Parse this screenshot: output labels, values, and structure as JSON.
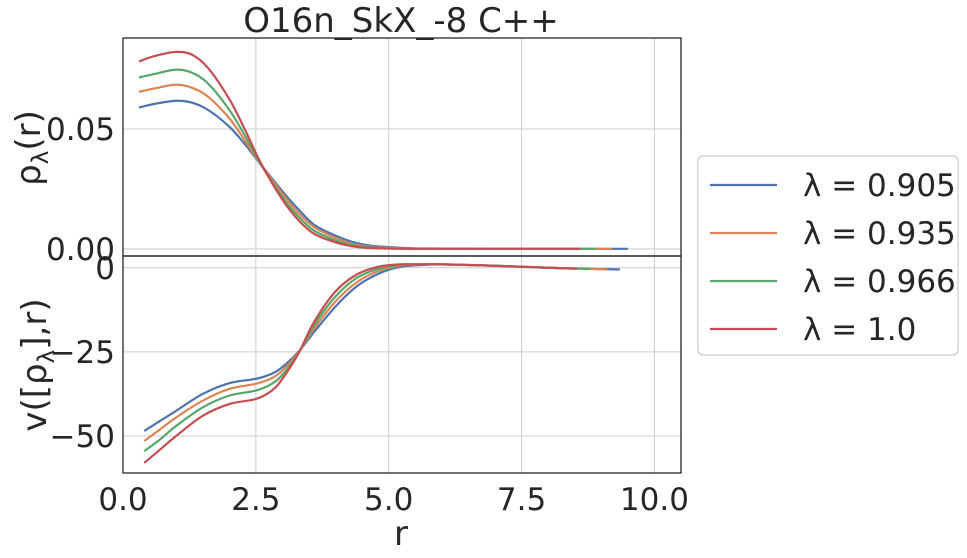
{
  "chart_data": [
    {
      "type": "line",
      "panel": "top",
      "title": "O16n_SkX_-8 C++",
      "xlabel": "",
      "ylabel": "ρλ(r)",
      "ylabel_base": "ρ",
      "ylabel_sub": "λ",
      "ylabel_tail": "(r)",
      "xlim": [
        0.0,
        10.5
      ],
      "ylim": [
        -0.003,
        0.088
      ],
      "yticks": [
        0.0,
        0.05
      ],
      "ytick_labels": [
        "0.00",
        "0.05"
      ],
      "grid": true,
      "series": [
        {
          "name": "λ = 0.905",
          "color": "#4c72b0",
          "x": [
            0.3,
            0.6,
            1.0,
            1.3,
            1.6,
            2.0,
            2.3,
            2.6,
            3.0,
            3.3,
            3.6,
            4.0,
            4.3,
            4.6,
            5.0,
            5.5,
            6.0,
            7.0,
            8.0,
            9.0,
            9.5
          ],
          "y": [
            0.059,
            0.0605,
            0.0618,
            0.061,
            0.058,
            0.051,
            0.0435,
            0.035,
            0.024,
            0.0165,
            0.01,
            0.0055,
            0.003,
            0.0015,
            0.0007,
            0.0002,
            0.0001,
            0.0,
            0.0,
            0.0,
            0.0
          ]
        },
        {
          "name": "λ = 0.935",
          "color": "#dd8452",
          "x": [
            0.3,
            0.6,
            1.0,
            1.3,
            1.6,
            2.0,
            2.3,
            2.6,
            3.0,
            3.3,
            3.6,
            4.0,
            4.3,
            4.6,
            5.0,
            5.5,
            6.0,
            7.0,
            8.0,
            9.0,
            9.2
          ],
          "y": [
            0.0655,
            0.067,
            0.0685,
            0.0672,
            0.0635,
            0.0545,
            0.045,
            0.035,
            0.023,
            0.015,
            0.009,
            0.0045,
            0.0022,
            0.001,
            0.0004,
            0.0001,
            0.0,
            0.0,
            0.0,
            0.0,
            0.0
          ]
        },
        {
          "name": "λ = 0.966",
          "color": "#55a868",
          "x": [
            0.3,
            0.6,
            1.0,
            1.3,
            1.6,
            2.0,
            2.3,
            2.6,
            3.0,
            3.3,
            3.6,
            4.0,
            4.3,
            4.6,
            5.0,
            5.5,
            6.0,
            7.0,
            8.0,
            8.9
          ],
          "y": [
            0.0715,
            0.073,
            0.0748,
            0.0735,
            0.069,
            0.058,
            0.047,
            0.035,
            0.0215,
            0.0135,
            0.0075,
            0.0035,
            0.0016,
            0.0007,
            0.0002,
            0.0,
            0.0,
            0.0,
            0.0,
            0.0
          ]
        },
        {
          "name": "λ = 1.0",
          "color": "#c44e52",
          "x": [
            0.3,
            0.6,
            1.0,
            1.3,
            1.6,
            2.0,
            2.3,
            2.6,
            3.0,
            3.3,
            3.6,
            4.0,
            4.3,
            4.6,
            5.0,
            5.5,
            6.0,
            7.0,
            8.0,
            8.6
          ],
          "y": [
            0.0782,
            0.0805,
            0.0822,
            0.081,
            0.0755,
            0.0625,
            0.0495,
            0.0355,
            0.0205,
            0.012,
            0.0062,
            0.0027,
            0.0011,
            0.0004,
            0.0001,
            0.0,
            0.0,
            0.0,
            0.0,
            0.0
          ]
        }
      ]
    },
    {
      "type": "line",
      "panel": "bottom",
      "title": "",
      "xlabel": "r",
      "ylabel": "v([ρλ],r)",
      "ylabel_base": "v([ρ",
      "ylabel_sub": "λ",
      "ylabel_tail": "],r)",
      "xlim": [
        0.0,
        10.5
      ],
      "ylim": [
        -61,
        3.5
      ],
      "yticks": [
        0,
        -25,
        -50
      ],
      "ytick_labels": [
        "0",
        "−25",
        "−50"
      ],
      "xticks": [
        0.0,
        2.5,
        5.0,
        7.5,
        10.0
      ],
      "xtick_labels": [
        "0.0",
        "2.5",
        "5.0",
        "7.5",
        "10.0"
      ],
      "grid": true,
      "series": [
        {
          "name": "λ = 0.905",
          "color": "#4c72b0",
          "x": [
            0.4,
            0.7,
            1.0,
            1.5,
            2.0,
            2.5,
            2.8,
            3.0,
            3.3,
            3.6,
            4.0,
            4.4,
            4.8,
            5.2,
            5.6,
            6.0,
            7.0,
            8.0,
            9.0,
            9.35
          ],
          "y": [
            -48.5,
            -45.5,
            -42.5,
            -37.5,
            -34.3,
            -33.0,
            -31.5,
            -29.5,
            -25.0,
            -19.0,
            -11.5,
            -5.5,
            -1.8,
            0.2,
            0.8,
            1.0,
            0.6,
            0.0,
            -0.4,
            -0.5
          ]
        },
        {
          "name": "λ = 0.935",
          "color": "#dd8452",
          "x": [
            0.4,
            0.7,
            1.0,
            1.5,
            2.0,
            2.5,
            2.8,
            3.0,
            3.3,
            3.6,
            4.0,
            4.4,
            4.8,
            5.2,
            5.6,
            6.0,
            7.0,
            8.0,
            9.0,
            9.1
          ],
          "y": [
            -51.5,
            -48.0,
            -44.5,
            -39.5,
            -36.0,
            -34.5,
            -32.8,
            -30.5,
            -25.2,
            -18.0,
            -10.0,
            -4.3,
            -1.0,
            0.6,
            1.0,
            1.0,
            0.6,
            0.0,
            -0.4,
            -0.4
          ]
        },
        {
          "name": "λ = 0.966",
          "color": "#55a868",
          "x": [
            0.4,
            0.7,
            1.0,
            1.5,
            2.0,
            2.5,
            2.8,
            3.0,
            3.3,
            3.6,
            4.0,
            4.4,
            4.8,
            5.2,
            5.6,
            6.0,
            7.0,
            8.0,
            8.8
          ],
          "y": [
            -54.5,
            -51.0,
            -47.0,
            -41.5,
            -38.0,
            -36.5,
            -34.5,
            -31.8,
            -25.5,
            -17.0,
            -8.5,
            -3.0,
            -0.3,
            0.9,
            1.0,
            1.0,
            0.6,
            0.0,
            -0.3
          ]
        },
        {
          "name": "λ = 1.0",
          "color": "#c44e52",
          "x": [
            0.4,
            0.7,
            1.0,
            1.5,
            2.0,
            2.5,
            2.8,
            3.0,
            3.3,
            3.6,
            4.0,
            4.4,
            4.8,
            5.2,
            5.6,
            6.0,
            7.0,
            8.0,
            8.55
          ],
          "y": [
            -58.0,
            -54.0,
            -50.0,
            -44.0,
            -40.5,
            -39.0,
            -36.5,
            -33.0,
            -25.5,
            -16.0,
            -7.0,
            -2.0,
            0.3,
            1.0,
            1.0,
            1.0,
            0.6,
            0.0,
            -0.3
          ]
        }
      ]
    }
  ],
  "legend": {
    "placement": "right",
    "entries": [
      {
        "text": "λ = 0.905",
        "color": "#4c72b0"
      },
      {
        "text": "λ = 0.935",
        "color": "#dd8452"
      },
      {
        "text": "λ = 0.966",
        "color": "#55a868"
      },
      {
        "text": "λ = 1.0",
        "color": "#c44e52"
      }
    ]
  }
}
